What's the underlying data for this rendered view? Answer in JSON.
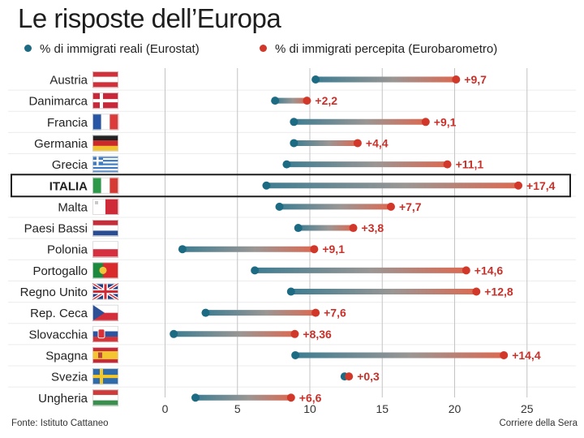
{
  "title": "Le risposte dell’Europa",
  "legend": {
    "real": "% di immigrati reali (Eurostat)",
    "perceived": "% di immigrati percepita (Eurobarometro)"
  },
  "colors": {
    "real": "#1d6a83",
    "perceived": "#d1382a",
    "label": "#c8302a",
    "grid": "#c4c4c4"
  },
  "chart_data": {
    "type": "dumbbell",
    "title": "Le risposte dell’Europa",
    "xlim": [
      -3,
      27.5
    ],
    "xticks": [
      0,
      5,
      10,
      15,
      20,
      25
    ],
    "highlight": "ITALIA",
    "series": [
      {
        "name": "% di immigrati reali (Eurostat)"
      },
      {
        "name": "% di immigrati percepita (Eurobarometro)"
      }
    ],
    "rows": [
      {
        "country": "Austria",
        "real": 10.4,
        "perceived": 20.1,
        "diff": "+9,7",
        "flag": "austria-flag"
      },
      {
        "country": "Danimarca",
        "real": 7.6,
        "perceived": 9.8,
        "diff": "+2,2",
        "flag": "denmark-flag"
      },
      {
        "country": "Francia",
        "real": 8.9,
        "perceived": 18.0,
        "diff": "+9,1",
        "flag": "france-flag"
      },
      {
        "country": "Germania",
        "real": 8.9,
        "perceived": 13.3,
        "diff": "+4,4",
        "flag": "germany-flag"
      },
      {
        "country": "Grecia",
        "real": 8.4,
        "perceived": 19.5,
        "diff": "+11,1",
        "flag": "greece-flag"
      },
      {
        "country": "ITALIA",
        "real": 7.0,
        "perceived": 24.4,
        "diff": "+17,4",
        "flag": "italy-flag"
      },
      {
        "country": "Malta",
        "real": 7.9,
        "perceived": 15.6,
        "diff": "+7,7",
        "flag": "malta-flag"
      },
      {
        "country": "Paesi Bassi",
        "real": 9.2,
        "perceived": 13.0,
        "diff": "+3,8",
        "flag": "netherlands-flag"
      },
      {
        "country": "Polonia",
        "real": 1.2,
        "perceived": 10.3,
        "diff": "+9,1",
        "flag": "poland-flag"
      },
      {
        "country": "Portogallo",
        "real": 6.2,
        "perceived": 20.8,
        "diff": "+14,6",
        "flag": "portugal-flag"
      },
      {
        "country": "Regno Unito",
        "real": 8.7,
        "perceived": 21.5,
        "diff": "+12,8",
        "flag": "uk-flag"
      },
      {
        "country": "Rep. Ceca",
        "real": 2.8,
        "perceived": 10.4,
        "diff": "+7,6",
        "flag": "czech-flag"
      },
      {
        "country": "Slovacchia",
        "real": 0.6,
        "perceived": 8.96,
        "diff": "+8,36",
        "flag": "slovakia-flag"
      },
      {
        "country": "Spagna",
        "real": 9.0,
        "perceived": 23.4,
        "diff": "+14,4",
        "flag": "spain-flag"
      },
      {
        "country": "Svezia",
        "real": 12.4,
        "perceived": 12.7,
        "diff": "+0,3",
        "flag": "sweden-flag"
      },
      {
        "country": "Ungheria",
        "real": 2.1,
        "perceived": 8.7,
        "diff": "+6,6",
        "flag": "hungary-flag"
      }
    ]
  },
  "footer": {
    "source": "Fonte: Istituto Cattaneo",
    "credit": "Corriere della Sera"
  }
}
